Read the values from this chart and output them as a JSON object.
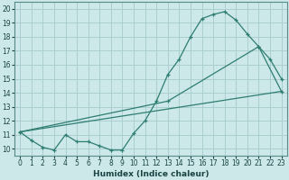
{
  "xlabel": "Humidex (Indice chaleur)",
  "xlim": [
    -0.5,
    23.5
  ],
  "ylim": [
    9.5,
    20.5
  ],
  "xticks": [
    0,
    1,
    2,
    3,
    4,
    5,
    6,
    7,
    8,
    9,
    10,
    11,
    12,
    13,
    14,
    15,
    16,
    17,
    18,
    19,
    20,
    21,
    22,
    23
  ],
  "yticks": [
    10,
    11,
    12,
    13,
    14,
    15,
    16,
    17,
    18,
    19,
    20
  ],
  "line_color": "#2e7d72",
  "bg_color": "#cce8e8",
  "grid_color": "#aacece",
  "line1": {
    "x": [
      0,
      1,
      2,
      3,
      4,
      5,
      6,
      7,
      8,
      9,
      10,
      11,
      12,
      13,
      14,
      15,
      16,
      17,
      18,
      19,
      20,
      21,
      22,
      23
    ],
    "y": [
      11.2,
      10.6,
      10.1,
      9.9,
      11.0,
      10.5,
      10.5,
      10.2,
      9.9,
      9.9,
      11.1,
      12.0,
      13.4,
      15.3,
      16.4,
      18.0,
      19.3,
      19.6,
      19.8,
      19.2,
      18.2,
      17.3,
      16.4,
      15.0
    ]
  },
  "line2": {
    "x": [
      0,
      13,
      21,
      23
    ],
    "y": [
      11.2,
      13.4,
      17.3,
      14.1
    ]
  },
  "line3": {
    "x": [
      0,
      23
    ],
    "y": [
      11.2,
      14.1
    ]
  }
}
